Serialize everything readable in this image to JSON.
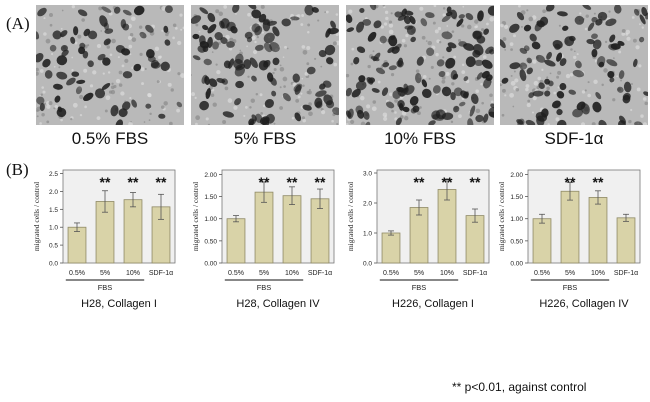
{
  "panel_labels": {
    "a": "(A)",
    "b": "(B)"
  },
  "micrographs": [
    {
      "label": "0.5% FBS",
      "density": 0.35
    },
    {
      "label": "5% FBS",
      "density": 0.6
    },
    {
      "label": "10% FBS",
      "density": 0.85
    },
    {
      "label": "SDF-1α",
      "density": 0.55
    }
  ],
  "footnote": "** p<0.01, against control",
  "colors": {
    "bar_fill": "#d9d3a8",
    "bar_stroke": "#8f8a66",
    "plot_bg": "#f0f0f0",
    "cell_dark": "#1f1f1f",
    "field_bg": "#b9b9b9"
  },
  "chart_data": [
    {
      "type": "bar",
      "title": "H28, Collagen I",
      "ylabel": "migrated cells / control",
      "categories": [
        "0.5%",
        "5%",
        "10%",
        "SDF-1α"
      ],
      "group_label": "FBS",
      "values": [
        1.0,
        1.72,
        1.77,
        1.57
      ],
      "errors": [
        0.12,
        0.3,
        0.2,
        0.35
      ],
      "significance": [
        "",
        "**",
        "**",
        "**"
      ],
      "ylim": [
        0,
        2.6
      ],
      "yticks": [
        "0.0",
        "0.5",
        "1.0",
        "1.5",
        "2.0",
        "2.5"
      ],
      "ytick_values": [
        0,
        0.5,
        1.0,
        1.5,
        2.0,
        2.5
      ]
    },
    {
      "type": "bar",
      "title": "H28, Collagen IV",
      "ylabel": "migrated cells / control",
      "categories": [
        "0.5%",
        "5%",
        "10%",
        "SDF-1α"
      ],
      "group_label": "FBS",
      "values": [
        1.0,
        1.6,
        1.52,
        1.45
      ],
      "errors": [
        0.07,
        0.23,
        0.2,
        0.22
      ],
      "significance": [
        "",
        "**",
        "**",
        "**"
      ],
      "ylim": [
        0,
        2.1
      ],
      "yticks": [
        "0.00",
        "0.50",
        "1.00",
        "1.50",
        "2.00"
      ],
      "ytick_values": [
        0,
        0.5,
        1.0,
        1.5,
        2.0
      ]
    },
    {
      "type": "bar",
      "title": "H226, Collagen I",
      "ylabel": "migrated cells / control",
      "categories": [
        "0.5%",
        "5%",
        "10%",
        "SDF-1α"
      ],
      "group_label": "FBS",
      "values": [
        1.0,
        1.85,
        2.45,
        1.58
      ],
      "errors": [
        0.07,
        0.25,
        0.35,
        0.22
      ],
      "significance": [
        "",
        "**",
        "**",
        "**"
      ],
      "ylim": [
        0,
        3.1
      ],
      "yticks": [
        "0.0",
        "1.0",
        "2.0",
        "3.0"
      ],
      "ytick_values": [
        0,
        1.0,
        2.0,
        3.0
      ]
    },
    {
      "type": "bar",
      "title": "H226, Collagen IV",
      "ylabel": "migrated cells / control",
      "categories": [
        "0.5%",
        "5%",
        "10%",
        "SDF-1α"
      ],
      "group_label": "FBS",
      "values": [
        1.0,
        1.62,
        1.48,
        1.02
      ],
      "errors": [
        0.1,
        0.2,
        0.15,
        0.08
      ],
      "significance": [
        "",
        "**",
        "**",
        ""
      ],
      "ylim": [
        0,
        2.1
      ],
      "yticks": [
        "0.00",
        "0.50",
        "1.00",
        "1.50",
        "2.00"
      ],
      "ytick_values": [
        0,
        0.5,
        1.0,
        1.5,
        2.0
      ]
    }
  ]
}
